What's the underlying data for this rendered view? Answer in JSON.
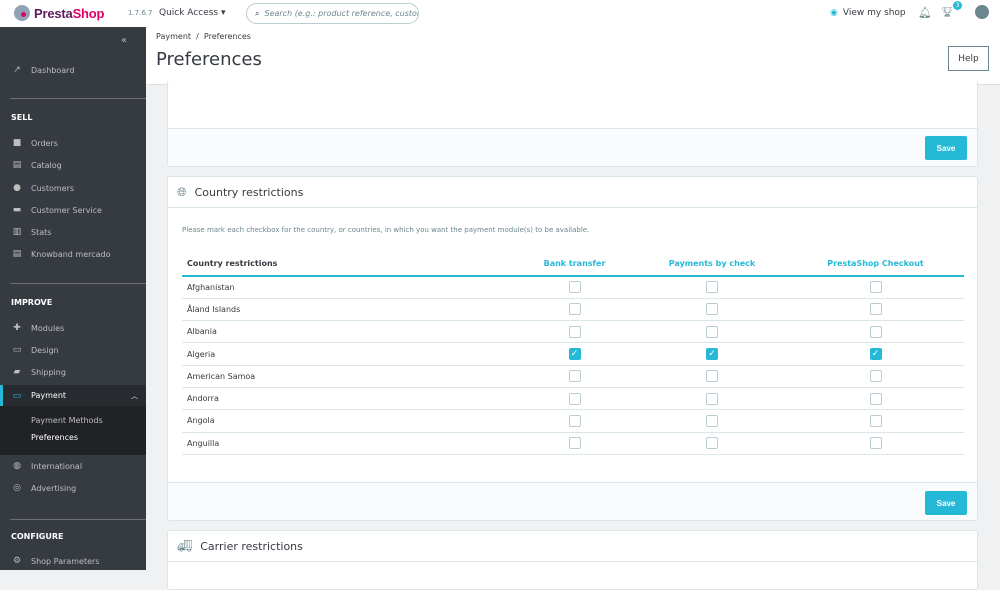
{
  "topbar": {
    "logo": "PrestaShop",
    "logo_a": "Presta",
    "logo_b": "Shop",
    "version": "1.7.6.7",
    "quick_access": "Quick Access ▾",
    "search_placeholder": "Search (e.g.: product reference, custome",
    "view_shop": "View my shop",
    "notif_count": "3"
  },
  "sidebar": {
    "collapse": "«",
    "dashboard": "Dashboard",
    "sell": "SELL",
    "sell_items": [
      "Orders",
      "Catalog",
      "Customers",
      "Customer Service",
      "Stats",
      "Knowband mercado"
    ],
    "improve": "IMPROVE",
    "improve_items": [
      "Modules",
      "Design",
      "Shipping"
    ],
    "payment": "Payment",
    "payment_sub": [
      "Payment Methods",
      "Preferences"
    ],
    "more_items": [
      "International",
      "Advertising"
    ],
    "configure": "CONFIGURE",
    "configure_items": [
      "Shop Parameters"
    ]
  },
  "header": {
    "breadcrumb": "Payment  /  Preferences",
    "title": "Preferences",
    "help": "Help"
  },
  "panel_top": {
    "save": "Save"
  },
  "country": {
    "title": "Country restrictions",
    "description": "Please mark each checkbox for the country, or countries, in which you want the payment module(s) to be available.",
    "columns": [
      "Country restrictions",
      "Bank transfer",
      "Payments by check",
      "PrestaShop Checkout"
    ],
    "rows": [
      {
        "name": "Afghanistan",
        "checks": [
          false,
          false,
          false
        ]
      },
      {
        "name": "Åland Islands",
        "checks": [
          false,
          false,
          false
        ]
      },
      {
        "name": "Albania",
        "checks": [
          false,
          false,
          false
        ]
      },
      {
        "name": "Algeria",
        "checks": [
          true,
          true,
          true
        ]
      },
      {
        "name": "American Samoa",
        "checks": [
          false,
          false,
          false
        ]
      },
      {
        "name": "Andorra",
        "checks": [
          false,
          false,
          false
        ]
      },
      {
        "name": "Angola",
        "checks": [
          false,
          false,
          false
        ]
      },
      {
        "name": "Anguilla",
        "checks": [
          false,
          false,
          false
        ]
      }
    ],
    "save": "Save"
  },
  "carrier": {
    "title": "Carrier restrictions"
  },
  "colors": {
    "accent": "#25b9d7",
    "sidebar": "#363a41"
  }
}
